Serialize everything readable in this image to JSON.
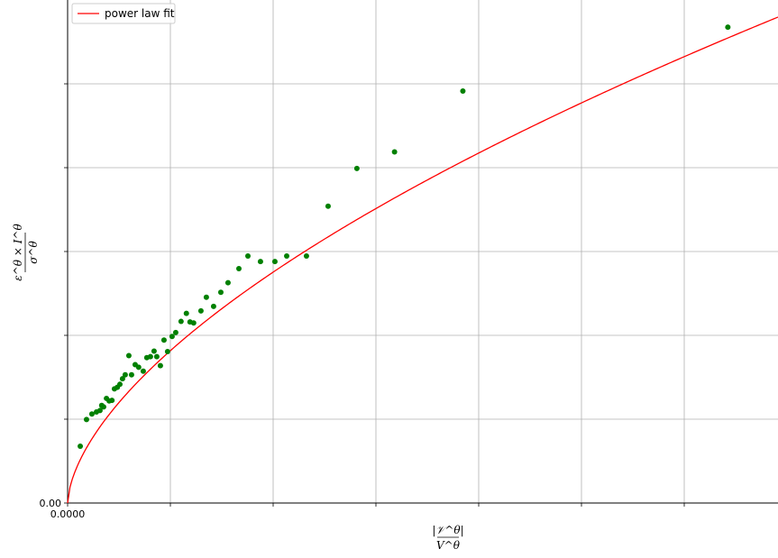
{
  "chart_data": {
    "type": "scatter",
    "xlabel_numerator": "|𝒱^θ|",
    "xlabel_denominator": "V^θ",
    "ylabel_numerator": "ε^θ × I^θ",
    "ylabel_denominator": "σ^θ",
    "xlim": [
      0,
      1.0
    ],
    "ylim": [
      0,
      1.0
    ],
    "x_origin_label": "0.0000",
    "y_origin_label": "0.00",
    "grid": true,
    "legend": {
      "placement": "top-left",
      "entries": [
        {
          "label": "power law fit",
          "color": "#ff0000"
        }
      ]
    },
    "fit": {
      "exponent": 0.6,
      "coefficient": 0.966,
      "color": "#ff0000"
    },
    "scatter_color": "#008000",
    "points": [
      [
        0.0178,
        0.113
      ],
      [
        0.0266,
        0.166
      ],
      [
        0.0342,
        0.177
      ],
      [
        0.0406,
        0.181
      ],
      [
        0.0456,
        0.184
      ],
      [
        0.048,
        0.194
      ],
      [
        0.0507,
        0.191
      ],
      [
        0.0547,
        0.208
      ],
      [
        0.0585,
        0.203
      ],
      [
        0.0624,
        0.204
      ],
      [
        0.0659,
        0.227
      ],
      [
        0.07,
        0.23
      ],
      [
        0.0736,
        0.236
      ],
      [
        0.0773,
        0.247
      ],
      [
        0.0811,
        0.255
      ],
      [
        0.0862,
        0.293
      ],
      [
        0.09,
        0.255
      ],
      [
        0.0951,
        0.275
      ],
      [
        0.1,
        0.27
      ],
      [
        0.1065,
        0.262
      ],
      [
        0.1115,
        0.289
      ],
      [
        0.1166,
        0.291
      ],
      [
        0.1217,
        0.302
      ],
      [
        0.1255,
        0.291
      ],
      [
        0.1306,
        0.273
      ],
      [
        0.1357,
        0.324
      ],
      [
        0.1407,
        0.301
      ],
      [
        0.1471,
        0.331
      ],
      [
        0.1522,
        0.339
      ],
      [
        0.1597,
        0.361
      ],
      [
        0.1672,
        0.377
      ],
      [
        0.1723,
        0.36
      ],
      [
        0.1774,
        0.358
      ],
      [
        0.1877,
        0.382
      ],
      [
        0.1953,
        0.409
      ],
      [
        0.2055,
        0.391
      ],
      [
        0.2157,
        0.419
      ],
      [
        0.2258,
        0.438
      ],
      [
        0.2411,
        0.466
      ],
      [
        0.2538,
        0.491
      ],
      [
        0.2715,
        0.48
      ],
      [
        0.2918,
        0.48
      ],
      [
        0.3084,
        0.491
      ],
      [
        0.3362,
        0.491
      ],
      [
        0.3667,
        0.59
      ],
      [
        0.4072,
        0.665
      ],
      [
        0.4602,
        0.698
      ],
      [
        0.5564,
        0.819
      ],
      [
        0.9294,
        0.946
      ]
    ]
  }
}
